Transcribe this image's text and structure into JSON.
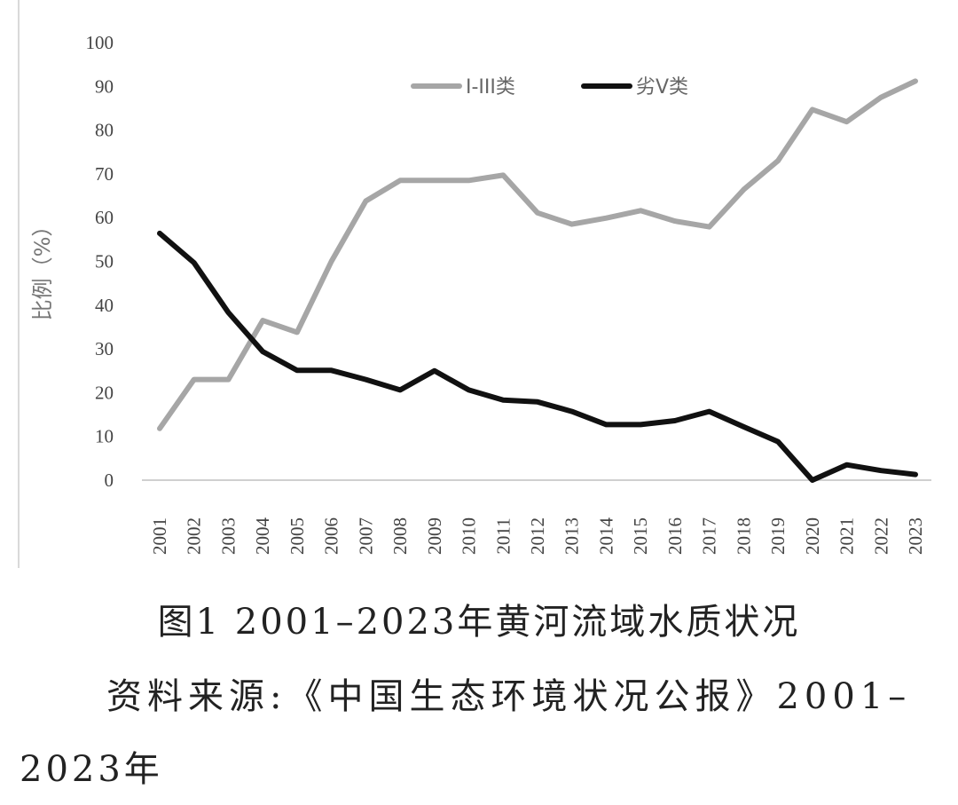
{
  "chart_data": {
    "type": "line",
    "title": "",
    "xlabel": "",
    "ylabel": "比例（%）",
    "ylim": [
      0,
      100
    ],
    "yticks": [
      "0",
      "10",
      "20",
      "30",
      "40",
      "50",
      "60",
      "70",
      "80",
      "90",
      "100"
    ],
    "categories": [
      "2001",
      "2002",
      "2003",
      "2004",
      "2005",
      "2006",
      "2007",
      "2008",
      "2009",
      "2010",
      "2011",
      "2012",
      "2013",
      "2014",
      "2015",
      "2016",
      "2017",
      "2018",
      "2019",
      "2020",
      "2021",
      "2022",
      "2023"
    ],
    "grid": false,
    "legend_position": "top-right",
    "series": [
      {
        "name": "I-III类",
        "color": "#a6a6a6",
        "values": [
          11.8,
          23,
          23,
          36.5,
          33.8,
          50,
          63.8,
          68.5,
          68.5,
          68.5,
          69.7,
          61.1,
          58.5,
          59.9,
          61.6,
          59.2,
          57.9,
          66.4,
          73,
          84.7,
          81.9,
          87.5,
          91.2
        ]
      },
      {
        "name": "劣V类",
        "color": "#111111",
        "values": [
          56.4,
          49.7,
          38.3,
          29.4,
          25.1,
          25.1,
          23,
          20.6,
          25,
          20.6,
          18.3,
          17.9,
          15.7,
          12.7,
          12.7,
          13.6,
          15.7,
          12.2,
          8.8,
          0,
          3.5,
          2.2,
          1.3
        ]
      }
    ]
  },
  "caption": {
    "figure": "图1 2001–2023年黄河流域水质状况",
    "source_line1": "资料来源:《中国生态环境状况公报》2001–",
    "source_line2": "2023年"
  }
}
